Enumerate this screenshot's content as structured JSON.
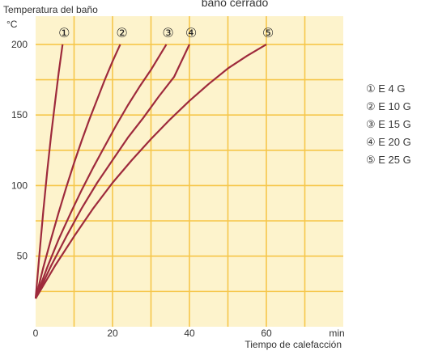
{
  "chart_data": {
    "type": "line",
    "title": "baño cerrado",
    "ylabel": "Temperatura del baño",
    "yunit": "°C",
    "xlabel": "Tiempo de calefacción",
    "xunit": "min",
    "xlim": [
      0,
      80
    ],
    "ylim": [
      0,
      220
    ],
    "x_ticks": [
      0,
      20,
      40,
      60
    ],
    "y_ticks": [
      50,
      100,
      150,
      200
    ],
    "grid": true,
    "colors": {
      "plot_background": "#fdf3cc",
      "grid": "#f6c64a",
      "curve": "#9e2a3c"
    },
    "series": [
      {
        "marker": "①",
        "name": "E 4 G",
        "x": [
          0,
          1,
          2,
          3,
          4,
          5,
          6,
          7
        ],
        "y": [
          20,
          52,
          82,
          110,
          135,
          158,
          180,
          200
        ]
      },
      {
        "marker": "②",
        "name": "E 10 G",
        "x": [
          0,
          2,
          4,
          6,
          8,
          10,
          12,
          14,
          16,
          18,
          20,
          22
        ],
        "y": [
          20,
          42,
          62,
          81,
          99,
          116,
          132,
          147,
          161,
          175,
          188,
          200
        ]
      },
      {
        "marker": "③",
        "name": "E 15 G",
        "x": [
          0,
          3,
          6,
          9,
          12,
          15,
          18,
          21,
          24,
          27,
          30,
          34
        ],
        "y": [
          20,
          42,
          62,
          80,
          97,
          113,
          128,
          143,
          157,
          170,
          182,
          200
        ]
      },
      {
        "marker": "④",
        "name": "E 20 G",
        "x": [
          0,
          4,
          8,
          12,
          16,
          20,
          24,
          28,
          32,
          36,
          40
        ],
        "y": [
          20,
          43,
          64,
          84,
          102,
          118,
          134,
          148,
          163,
          177,
          200
        ]
      },
      {
        "marker": "⑤",
        "name": "E 25 G",
        "x": [
          0,
          5,
          10,
          15,
          20,
          25,
          30,
          35,
          40,
          45,
          50,
          55,
          60
        ],
        "y": [
          20,
          43,
          64,
          84,
          102,
          118,
          133,
          147,
          160,
          172,
          183,
          192,
          200
        ]
      }
    ]
  }
}
